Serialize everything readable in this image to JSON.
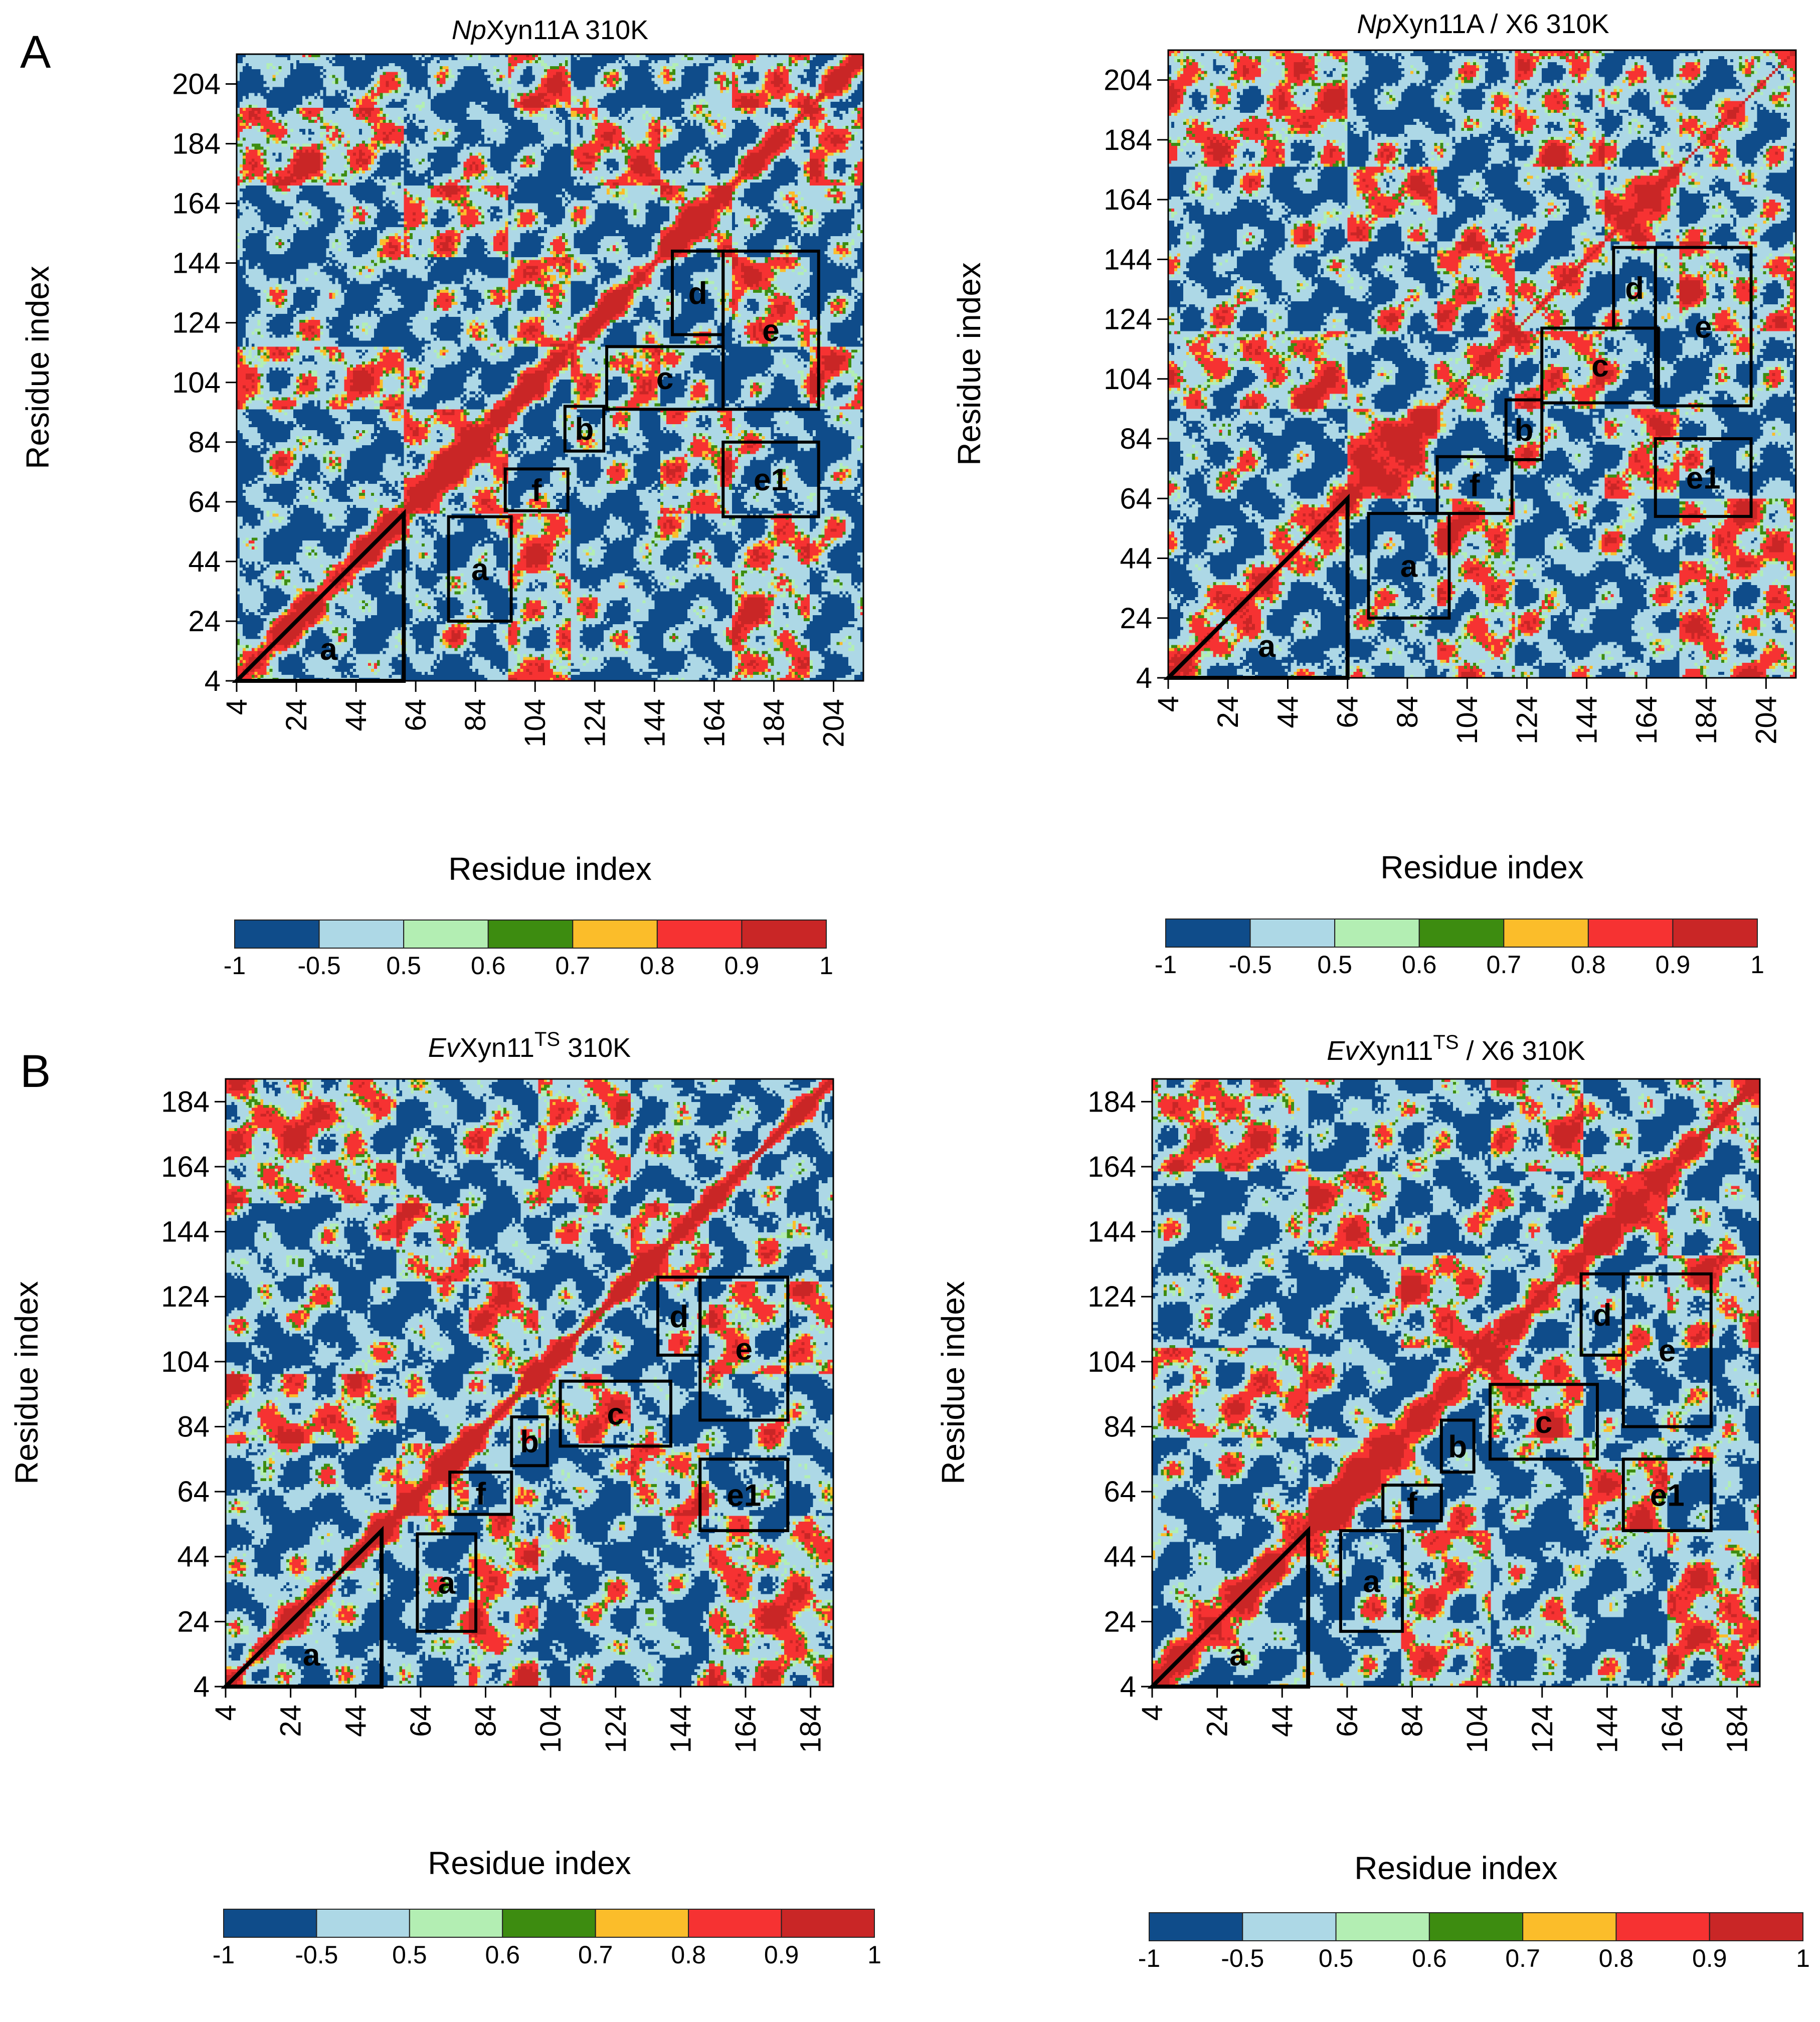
{
  "figure": {
    "panel_labels": [
      "A",
      "B"
    ],
    "colormap": {
      "levels": [
        "-1",
        "-0.5",
        "0.5",
        "0.6",
        "0.7",
        "0.8",
        "0.9",
        "1"
      ],
      "colors": [
        "#0f4c8a",
        "#add8e6",
        "#b3eeb3",
        "#3d8c10",
        "#fbbd2a",
        "#f63232",
        "#c92626"
      ]
    },
    "axis_label": "Residue index"
  },
  "chart_data": [
    {
      "type": "heatmap",
      "panel": "A",
      "title_italic": "Np",
      "title_rest": "Xyn11A 310K",
      "xlabel": "Residue index",
      "ylabel": "Residue index",
      "range": [
        4,
        214
      ],
      "ticks": [
        "4",
        "24",
        "44",
        "64",
        "84",
        "104",
        "124",
        "144",
        "164",
        "184",
        "204"
      ],
      "blocks": [
        [
          4,
          60
        ],
        [
          60,
          95
        ],
        [
          95,
          116
        ],
        [
          116,
          146
        ],
        [
          146,
          170
        ],
        [
          170,
          196
        ],
        [
          196,
          214
        ]
      ],
      "boxes": [
        {
          "label": "a",
          "shape": "triangle",
          "x": [
            4,
            60
          ],
          "y": [
            4,
            60
          ]
        },
        {
          "label": "a",
          "x": [
            75,
            96
          ],
          "y": [
            24,
            59
          ]
        },
        {
          "label": "f",
          "x": [
            94,
            115
          ],
          "y": [
            61,
            75
          ]
        },
        {
          "label": "b",
          "x": [
            114,
            127
          ],
          "y": [
            81,
            96
          ]
        },
        {
          "label": "c",
          "x": [
            128,
            167
          ],
          "y": [
            95,
            116
          ]
        },
        {
          "label": "d",
          "x": [
            150,
            167
          ],
          "y": [
            120,
            148
          ]
        },
        {
          "label": "e",
          "x": [
            167,
            199
          ],
          "y": [
            95,
            148
          ]
        },
        {
          "label": "e1",
          "x": [
            167,
            199
          ],
          "y": [
            59,
            84
          ]
        }
      ]
    },
    {
      "type": "heatmap",
      "panel": "A",
      "title_italic": "Np",
      "title_rest": "Xyn11A / X6 310K",
      "xlabel": "Residue index",
      "ylabel": "Residue index",
      "range": [
        4,
        214
      ],
      "ticks": [
        "4",
        "24",
        "44",
        "64",
        "84",
        "104",
        "124",
        "144",
        "164",
        "184",
        "204"
      ],
      "blocks": [
        [
          4,
          64
        ],
        [
          64,
          94
        ],
        [
          94,
          120
        ],
        [
          120,
          150
        ],
        [
          150,
          175
        ],
        [
          175,
          214
        ]
      ],
      "boxes": [
        {
          "label": "a",
          "shape": "triangle",
          "x": [
            4,
            64
          ],
          "y": [
            4,
            64
          ]
        },
        {
          "label": "a",
          "x": [
            71,
            98
          ],
          "y": [
            24,
            59
          ]
        },
        {
          "label": "f",
          "x": [
            94,
            119
          ],
          "y": [
            59,
            78
          ]
        },
        {
          "label": "b",
          "x": [
            117,
            129
          ],
          "y": [
            77,
            97
          ]
        },
        {
          "label": "c",
          "x": [
            129,
            168
          ],
          "y": [
            96,
            121
          ]
        },
        {
          "label": "d",
          "x": [
            153,
            167
          ],
          "y": [
            121,
            148
          ]
        },
        {
          "label": "e",
          "x": [
            167,
            199
          ],
          "y": [
            95,
            148
          ]
        },
        {
          "label": "e1",
          "x": [
            167,
            199
          ],
          "y": [
            58,
            84
          ]
        }
      ]
    },
    {
      "type": "heatmap",
      "panel": "B",
      "title_italic": "Ev",
      "title_rest": "Xyn11",
      "title_sup": "TS",
      "title_end": " 310K",
      "xlabel": "Residue index",
      "ylabel": "Residue index",
      "range": [
        4,
        191
      ],
      "ticks": [
        "4",
        "24",
        "44",
        "64",
        "84",
        "104",
        "124",
        "144",
        "164",
        "184"
      ],
      "blocks": [
        [
          4,
          56
        ],
        [
          56,
          78
        ],
        [
          78,
          100
        ],
        [
          100,
          128
        ],
        [
          128,
          152
        ],
        [
          152,
          191
        ]
      ],
      "boxes": [
        {
          "label": "a",
          "shape": "triangle",
          "x": [
            4,
            52
          ],
          "y": [
            4,
            52
          ]
        },
        {
          "label": "a",
          "x": [
            63,
            81
          ],
          "y": [
            21,
            51
          ]
        },
        {
          "label": "f",
          "x": [
            73,
            92
          ],
          "y": [
            57,
            70
          ]
        },
        {
          "label": "b",
          "x": [
            92,
            103
          ],
          "y": [
            72,
            87
          ]
        },
        {
          "label": "c",
          "x": [
            107,
            141
          ],
          "y": [
            78,
            98
          ]
        },
        {
          "label": "d",
          "x": [
            137,
            150
          ],
          "y": [
            106,
            130
          ]
        },
        {
          "label": "e",
          "x": [
            150,
            177
          ],
          "y": [
            86,
            130
          ]
        },
        {
          "label": "e1",
          "x": [
            150,
            177
          ],
          "y": [
            52,
            74
          ]
        }
      ]
    },
    {
      "type": "heatmap",
      "panel": "B",
      "title_italic": "Ev",
      "title_rest": "Xyn11",
      "title_sup": "TS",
      "title_end": " / X6 310K",
      "xlabel": "Residue index",
      "ylabel": "Residue index",
      "range": [
        4,
        191
      ],
      "ticks": [
        "4",
        "24",
        "44",
        "64",
        "84",
        "104",
        "124",
        "144",
        "164",
        "184"
      ],
      "blocks": [
        [
          4,
          52
        ],
        [
          52,
          80
        ],
        [
          80,
          108
        ],
        [
          108,
          136
        ],
        [
          136,
          162
        ],
        [
          162,
          191
        ]
      ],
      "boxes": [
        {
          "label": "a",
          "shape": "triangle",
          "x": [
            4,
            52
          ],
          "y": [
            4,
            52
          ]
        },
        {
          "label": "a",
          "x": [
            62,
            81
          ],
          "y": [
            21,
            52
          ]
        },
        {
          "label": "f",
          "x": [
            75,
            93
          ],
          "y": [
            55,
            66
          ]
        },
        {
          "label": "b",
          "x": [
            93,
            103
          ],
          "y": [
            70,
            86
          ]
        },
        {
          "label": "c",
          "x": [
            108,
            141
          ],
          "y": [
            74,
            97
          ]
        },
        {
          "label": "d",
          "x": [
            136,
            149
          ],
          "y": [
            106,
            131
          ]
        },
        {
          "label": "e",
          "x": [
            149,
            176
          ],
          "y": [
            84,
            131
          ]
        },
        {
          "label": "e1",
          "x": [
            149,
            176
          ],
          "y": [
            52,
            74
          ]
        }
      ]
    }
  ]
}
